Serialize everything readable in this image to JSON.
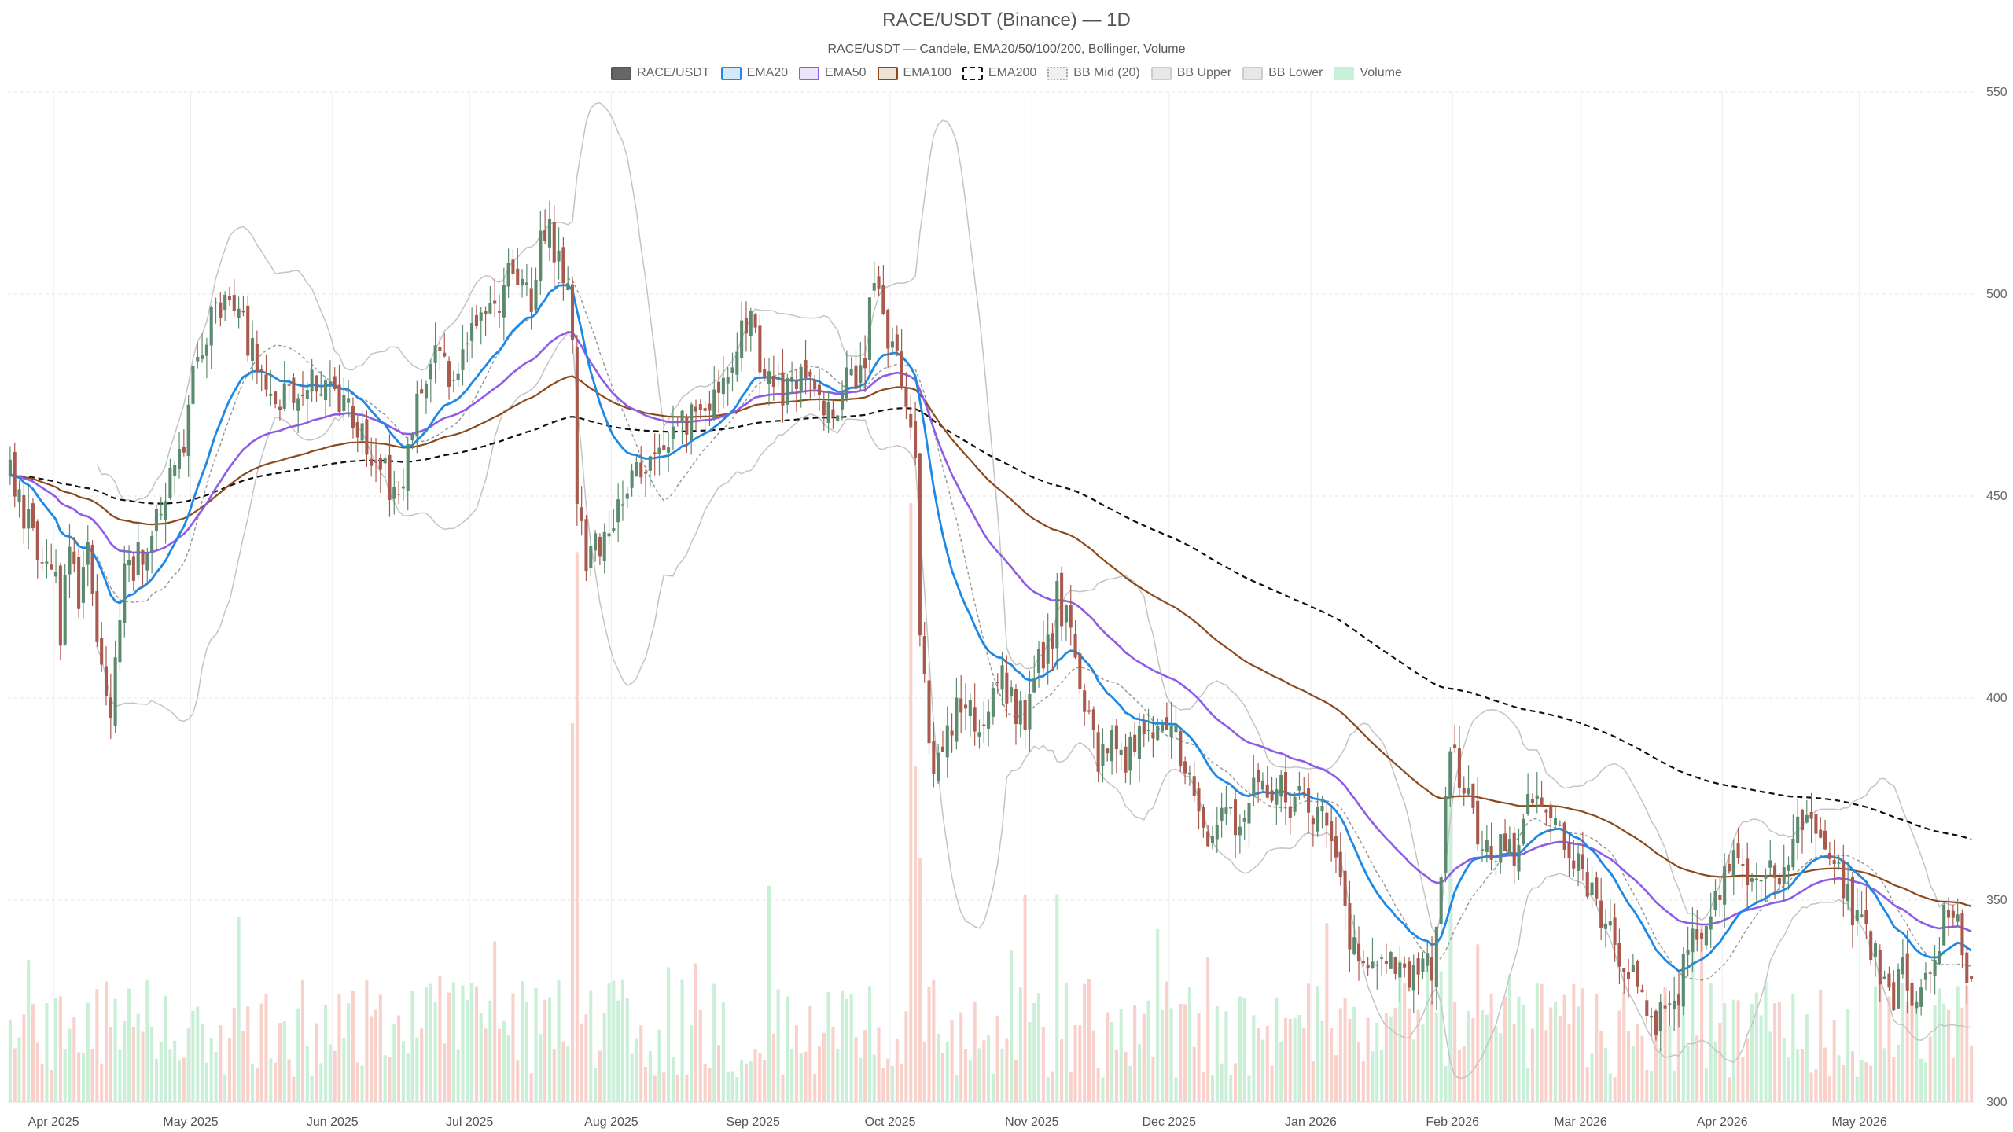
{
  "chart_data": {
    "type": "candlestick",
    "title": "RACE/USDT (Binance) — 1D",
    "subtitle": "RACE/USDT — Candele, EMA20/50/100/200, Bollinger, Volume",
    "legend": [
      {
        "name": "RACE/USDT",
        "fill": "#666666",
        "stroke": "#555555",
        "style": "solid"
      },
      {
        "name": "EMA20",
        "fill": "#d6e9f8",
        "stroke": "#1e88e5",
        "style": "solid"
      },
      {
        "name": "EMA50",
        "fill": "#ece4fb",
        "stroke": "#8e5ce6",
        "style": "solid"
      },
      {
        "name": "EMA100",
        "fill": "#efe3d6",
        "stroke": "#8b4a1e",
        "style": "solid"
      },
      {
        "name": "EMA200",
        "fill": "#ffffff",
        "stroke": "#111111",
        "style": "dashed"
      },
      {
        "name": "BB Mid (20)",
        "fill": "#f0f0f0",
        "stroke": "#aaaaaa",
        "style": "dotted"
      },
      {
        "name": "BB Upper",
        "fill": "#e8e8e8",
        "stroke": "#cccccc",
        "style": "solid"
      },
      {
        "name": "BB Lower",
        "fill": "#e8e8e8",
        "stroke": "#cccccc",
        "style": "solid"
      },
      {
        "name": "Volume",
        "fill": "#c9efd9",
        "stroke": "#c9efd9",
        "style": "solid"
      }
    ],
    "colors": {
      "up": "#5b8a6e",
      "down": "#a85a4e",
      "vol_up": "#bfeccf",
      "vol_down": "#f8c9c2",
      "ema20": "#1e88e5",
      "ema50": "#8e5ce6",
      "ema100": "#8b4a1e",
      "ema200": "#111111",
      "bb_mid": "#999999",
      "bb_band": "#c4c4c4"
    },
    "y_axis": {
      "min": 300,
      "max": 550,
      "ticks": [
        300,
        350,
        400,
        450,
        500,
        550
      ],
      "position": "right"
    },
    "x_axis": {
      "labels": [
        "Apr 2025",
        "May 2025",
        "Jun 2025",
        "Jul 2025",
        "Aug 2025",
        "Sep 2025",
        "Oct 2025",
        "Nov 2025",
        "Dec 2025",
        "Jan 2026",
        "Feb 2026",
        "Mar 2026",
        "Apr 2026",
        "May 2026"
      ]
    },
    "x_range_days": 430,
    "month_start_days": [
      10,
      40,
      71,
      101,
      132,
      163,
      193,
      224,
      254,
      285,
      316,
      344,
      375,
      405
    ],
    "grid": true,
    "price_anchors": [
      [
        0,
        455
      ],
      [
        3,
        446
      ],
      [
        7,
        433
      ],
      [
        10,
        428
      ],
      [
        11,
        412
      ],
      [
        13,
        440
      ],
      [
        15,
        418
      ],
      [
        17,
        440
      ],
      [
        20,
        405
      ],
      [
        22,
        398
      ],
      [
        25,
        430
      ],
      [
        27,
        433
      ],
      [
        30,
        438
      ],
      [
        33,
        448
      ],
      [
        35,
        458
      ],
      [
        38,
        465
      ],
      [
        40,
        478
      ],
      [
        42,
        487
      ],
      [
        45,
        496
      ],
      [
        48,
        501
      ],
      [
        50,
        497
      ],
      [
        53,
        485
      ],
      [
        56,
        478
      ],
      [
        60,
        475
      ],
      [
        65,
        480
      ],
      [
        70,
        478
      ],
      [
        73,
        473
      ],
      [
        76,
        468
      ],
      [
        78,
        462
      ],
      [
        80,
        458
      ],
      [
        82,
        455
      ],
      [
        85,
        448
      ],
      [
        87,
        462
      ],
      [
        90,
        476
      ],
      [
        93,
        488
      ],
      [
        96,
        481
      ],
      [
        99,
        485
      ],
      [
        102,
        490
      ],
      [
        105,
        495
      ],
      [
        108,
        502
      ],
      [
        110,
        506
      ],
      [
        112,
        500
      ],
      [
        114,
        497
      ],
      [
        116,
        512
      ],
      [
        118,
        515
      ],
      [
        120,
        509
      ],
      [
        122,
        500
      ],
      [
        123,
        490
      ],
      [
        124,
        448
      ],
      [
        126,
        432
      ],
      [
        128,
        437
      ],
      [
        131,
        442
      ],
      [
        134,
        447
      ],
      [
        136,
        452
      ],
      [
        138,
        458
      ],
      [
        140,
        462
      ],
      [
        143,
        464
      ],
      [
        147,
        468
      ],
      [
        150,
        470
      ],
      [
        154,
        476
      ],
      [
        157,
        482
      ],
      [
        160,
        490
      ],
      [
        162,
        493
      ],
      [
        164,
        484
      ],
      [
        167,
        476
      ],
      [
        170,
        475
      ],
      [
        173,
        478
      ],
      [
        177,
        474
      ],
      [
        180,
        472
      ],
      [
        183,
        478
      ],
      [
        185,
        480
      ],
      [
        187,
        486
      ],
      [
        188,
        500
      ],
      [
        190,
        497
      ],
      [
        192,
        490
      ],
      [
        194,
        486
      ],
      [
        196,
        470
      ],
      [
        198,
        458
      ],
      [
        199,
        415
      ],
      [
        200,
        402
      ],
      [
        201,
        387
      ],
      [
        203,
        382
      ],
      [
        206,
        393
      ],
      [
        208,
        400
      ],
      [
        211,
        393
      ],
      [
        214,
        400
      ],
      [
        217,
        406
      ],
      [
        220,
        397
      ],
      [
        222,
        396
      ],
      [
        225,
        410
      ],
      [
        228,
        413
      ],
      [
        229,
        425
      ],
      [
        232,
        416
      ],
      [
        235,
        398
      ],
      [
        238,
        386
      ],
      [
        241,
        388
      ],
      [
        244,
        384
      ],
      [
        247,
        390
      ],
      [
        250,
        393
      ],
      [
        253,
        394
      ],
      [
        256,
        387
      ],
      [
        259,
        375
      ],
      [
        262,
        366
      ],
      [
        265,
        372
      ],
      [
        268,
        370
      ],
      [
        271,
        377
      ],
      [
        274,
        377
      ],
      [
        277,
        380
      ],
      [
        280,
        372
      ],
      [
        283,
        376
      ],
      [
        285,
        373
      ],
      [
        288,
        370
      ],
      [
        290,
        362
      ],
      [
        293,
        340
      ],
      [
        296,
        338
      ],
      [
        299,
        336
      ],
      [
        302,
        334
      ],
      [
        305,
        330
      ],
      [
        308,
        335
      ],
      [
        311,
        332
      ],
      [
        313,
        358
      ],
      [
        315,
        389
      ],
      [
        316,
        386
      ],
      [
        320,
        369
      ],
      [
        322,
        366
      ],
      [
        324,
        364
      ],
      [
        327,
        362
      ],
      [
        329,
        360
      ],
      [
        332,
        378
      ],
      [
        335,
        376
      ],
      [
        338,
        370
      ],
      [
        340,
        366
      ],
      [
        342,
        362
      ],
      [
        344,
        356
      ],
      [
        346,
        350
      ],
      [
        348,
        346
      ],
      [
        351,
        338
      ],
      [
        354,
        333
      ],
      [
        357,
        326
      ],
      [
        359,
        319
      ],
      [
        362,
        322
      ],
      [
        365,
        327
      ],
      [
        366,
        336
      ],
      [
        369,
        342
      ],
      [
        372,
        348
      ],
      [
        375,
        357
      ],
      [
        378,
        360
      ],
      [
        381,
        355
      ],
      [
        385,
        357
      ],
      [
        388,
        356
      ],
      [
        391,
        372
      ],
      [
        394,
        368
      ],
      [
        397,
        363
      ],
      [
        400,
        356
      ],
      [
        403,
        348
      ],
      [
        406,
        340
      ],
      [
        409,
        333
      ],
      [
        412,
        327
      ],
      [
        414,
        332
      ],
      [
        417,
        326
      ],
      [
        420,
        330
      ],
      [
        422,
        340
      ],
      [
        423,
        348
      ],
      [
        425,
        350
      ],
      [
        428,
        333
      ]
    ],
    "candles": {
      "count": 430,
      "first_day": 0,
      "last_day": 429
    },
    "ema_start": {
      "ema20": 455,
      "ema50": 455,
      "ema100": 455,
      "ema200": 455
    },
    "bollinger_period": 20,
    "bollinger_k": 2,
    "volume_axis_fraction": 0.33
  }
}
